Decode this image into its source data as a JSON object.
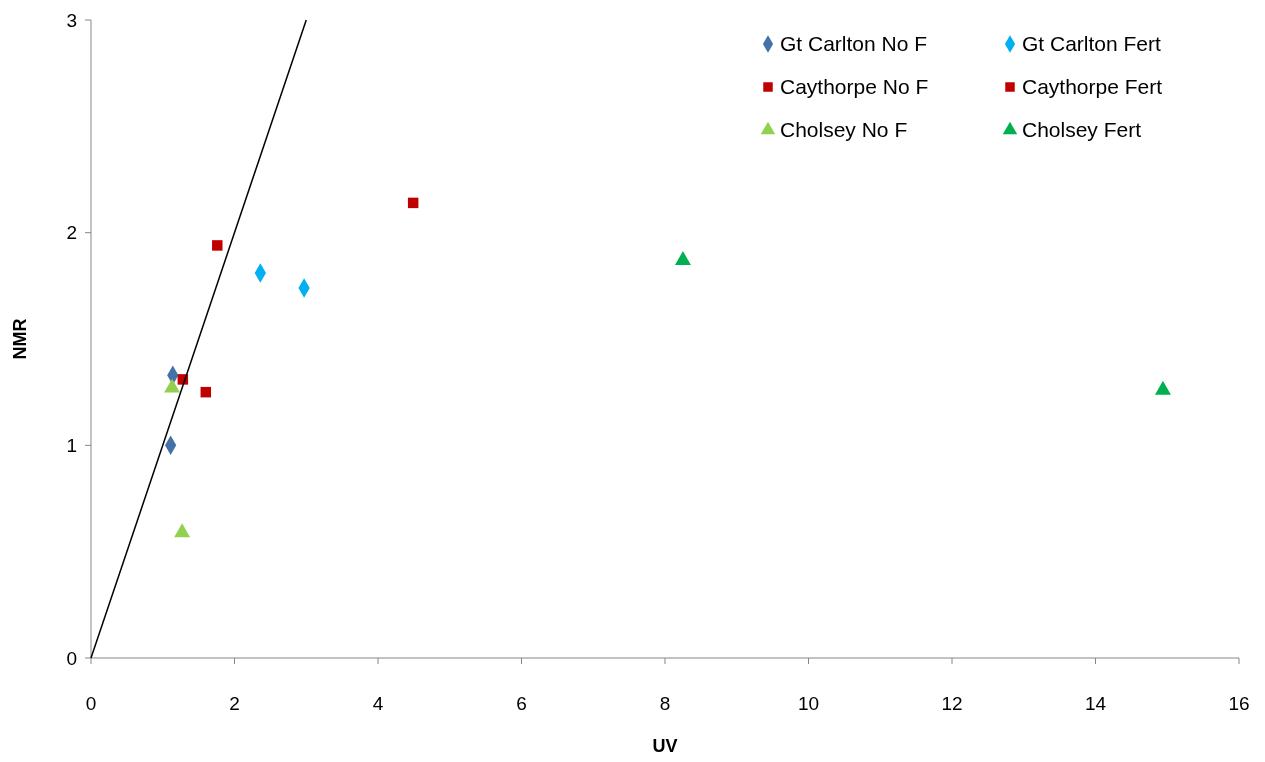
{
  "chart_data": {
    "type": "scatter",
    "xlabel": "UV",
    "ylabel": "NMR",
    "xlim": [
      0,
      16
    ],
    "ylim": [
      0,
      3
    ],
    "xticks": [
      0,
      2,
      4,
      6,
      8,
      10,
      12,
      14,
      16
    ],
    "yticks": [
      0,
      1,
      2,
      3
    ],
    "grid": false,
    "legend": "top right",
    "series": [
      {
        "name": "Gt Carlton No F",
        "color": "#4472a8",
        "marker": "diamond",
        "x": [
          1.14,
          1.11
        ],
        "values": [
          1.33,
          1.0
        ]
      },
      {
        "name": "Gt Carlton Fert",
        "color": "#00b0f0",
        "marker": "diamond",
        "x": [
          2.36,
          2.97
        ],
        "values": [
          1.81,
          1.74
        ]
      },
      {
        "name": "Caythorpe No F",
        "color": "#c00000",
        "marker": "square",
        "x": [
          1.76,
          1.28
        ],
        "values": [
          1.94,
          1.31
        ]
      },
      {
        "name": "Caythorpe Fert",
        "color": "#c00000",
        "marker": "square",
        "x": [
          4.49,
          1.6
        ],
        "values": [
          2.14,
          1.25
        ]
      },
      {
        "name": "Cholsey No F",
        "color": "#92d050",
        "marker": "triangle",
        "x": [
          1.13,
          1.27
        ],
        "values": [
          1.27,
          0.59
        ]
      },
      {
        "name": "Cholsey Fert",
        "color": "#00b050",
        "marker": "triangle",
        "x": [
          8.25,
          14.94
        ],
        "values": [
          1.87,
          1.26
        ]
      },
      {
        "type": "line",
        "color": "#000000",
        "marker": "none",
        "x": [
          0,
          3
        ],
        "values": [
          0,
          3
        ]
      }
    ]
  }
}
